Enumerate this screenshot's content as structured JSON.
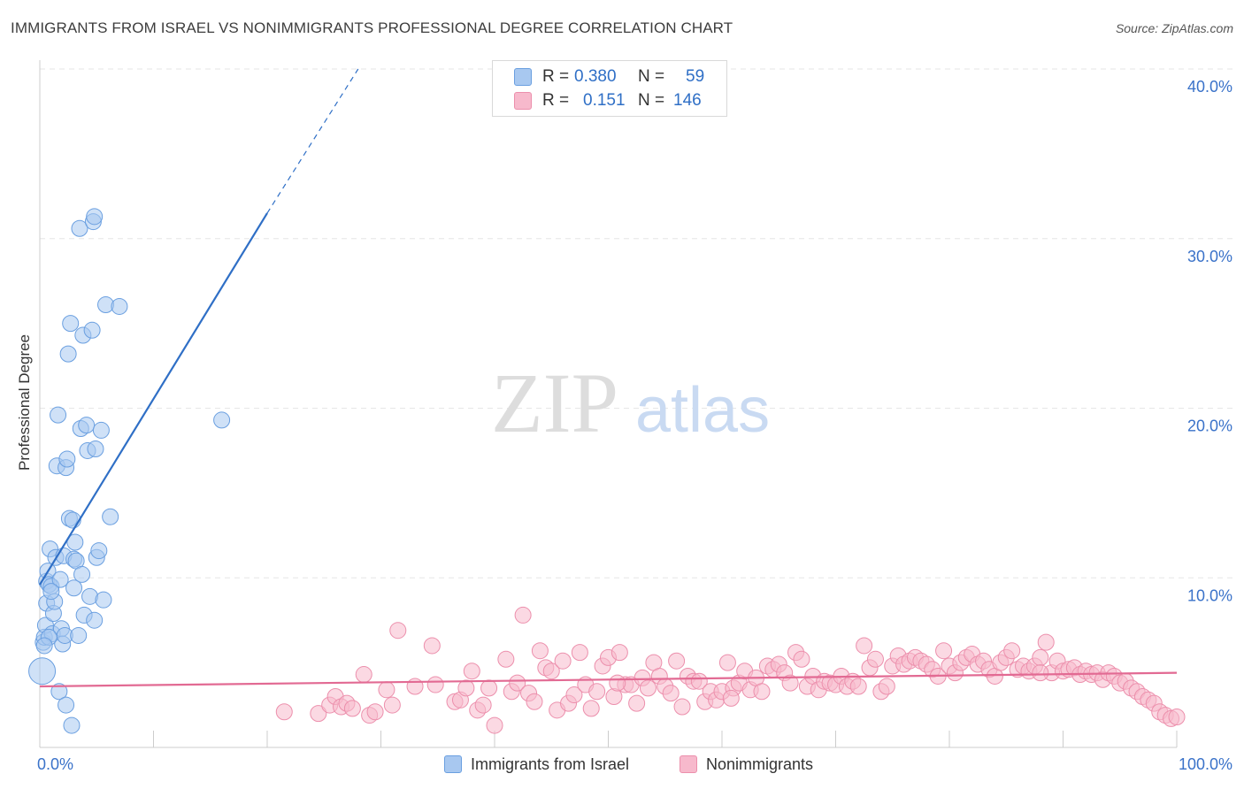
{
  "title": "IMMIGRANTS FROM ISRAEL VS NONIMMIGRANTS PROFESSIONAL DEGREE CORRELATION CHART",
  "source": "Source: ZipAtlas.com",
  "watermark": {
    "zip": "ZIP",
    "atlas": "atlas"
  },
  "legend": {
    "series1": {
      "r_label": "R =",
      "r_value": "0.380",
      "n_label": "N =",
      "n_value": "59"
    },
    "series2": {
      "r_label": "R =",
      "r_value": "0.151",
      "n_label": "N =",
      "n_value": "146"
    }
  },
  "colors": {
    "blue_fill": "#a8c8f0",
    "blue_stroke": "#6a9fe0",
    "blue_line": "#2f6fc6",
    "pink_fill": "#f7b9cc",
    "pink_stroke": "#ec8fac",
    "pink_line": "#e26a93",
    "axis_text": "#3a72c9",
    "grid": "#e6e6e6"
  },
  "chart_data": {
    "type": "scatter",
    "title": "IMMIGRANTS FROM ISRAEL VS NONIMMIGRANTS PROFESSIONAL DEGREE CORRELATION CHART",
    "xlabel": "",
    "ylabel": "Professional Degree",
    "xlim": [
      0,
      100
    ],
    "ylim": [
      0,
      40
    ],
    "x_tick_labels": [
      "0.0%",
      "100.0%"
    ],
    "y_ticks": [
      10,
      20,
      30,
      40
    ],
    "y_tick_labels": [
      "10.0%",
      "20.0%",
      "30.0%",
      "40.0%"
    ],
    "legend_position": "top-center",
    "series": [
      {
        "name": "Immigrants from Israel",
        "color": "#6a9fe0",
        "trendline": {
          "x_start": 0,
          "y_start": 9.6,
          "x_end_solid": 20,
          "y_end_solid": 31.5,
          "x_end_dashed": 28,
          "y_end_dashed": 40
        },
        "points": [
          [
            0.2,
            4.5
          ],
          [
            0.3,
            6.2
          ],
          [
            0.4,
            6.5
          ],
          [
            0.5,
            7.2
          ],
          [
            0.6,
            8.5
          ],
          [
            0.6,
            9.8
          ],
          [
            0.7,
            10.4
          ],
          [
            0.8,
            9.6
          ],
          [
            0.9,
            11.7
          ],
          [
            1.0,
            9.5
          ],
          [
            1.1,
            6.7
          ],
          [
            1.2,
            7.9
          ],
          [
            1.3,
            8.6
          ],
          [
            1.4,
            11.2
          ],
          [
            1.5,
            16.6
          ],
          [
            1.6,
            19.6
          ],
          [
            1.7,
            3.3
          ],
          [
            1.8,
            9.9
          ],
          [
            1.9,
            7.0
          ],
          [
            2.0,
            6.1
          ],
          [
            2.1,
            11.3
          ],
          [
            2.2,
            6.6
          ],
          [
            2.3,
            16.5
          ],
          [
            2.4,
            17.0
          ],
          [
            2.5,
            23.2
          ],
          [
            2.6,
            13.5
          ],
          [
            2.7,
            25.0
          ],
          [
            2.8,
            1.3
          ],
          [
            2.9,
            13.4
          ],
          [
            3.0,
            11.1
          ],
          [
            3.1,
            12.1
          ],
          [
            3.2,
            11.0
          ],
          [
            3.4,
            6.6
          ],
          [
            3.5,
            30.6
          ],
          [
            3.6,
            18.8
          ],
          [
            3.7,
            10.2
          ],
          [
            3.8,
            24.3
          ],
          [
            3.9,
            7.8
          ],
          [
            4.1,
            19.0
          ],
          [
            4.2,
            17.5
          ],
          [
            4.4,
            8.9
          ],
          [
            4.6,
            24.6
          ],
          [
            4.8,
            7.5
          ],
          [
            5.0,
            11.2
          ],
          [
            5.2,
            11.6
          ],
          [
            5.6,
            8.7
          ],
          [
            4.7,
            31.0
          ],
          [
            4.9,
            17.6
          ],
          [
            5.4,
            18.7
          ],
          [
            5.8,
            26.1
          ],
          [
            6.2,
            13.6
          ],
          [
            7.0,
            26.0
          ],
          [
            16.0,
            19.3
          ],
          [
            3.0,
            9.4
          ],
          [
            1.0,
            9.2
          ],
          [
            0.8,
            6.5
          ],
          [
            2.3,
            2.5
          ],
          [
            4.8,
            31.3
          ],
          [
            0.4,
            6.0
          ]
        ],
        "radius": [
          14,
          10,
          10,
          10,
          10,
          10,
          10,
          10,
          10,
          10,
          10,
          10,
          10,
          10,
          10,
          10,
          10,
          10,
          10,
          10,
          10,
          10,
          10,
          10,
          10,
          10,
          10,
          10,
          10,
          10,
          10,
          10,
          10,
          10,
          10,
          10,
          10,
          10,
          10,
          10,
          10,
          10,
          10,
          10,
          10,
          10,
          10,
          10,
          10,
          10,
          10,
          10,
          10,
          10,
          10,
          10,
          10,
          10,
          10
        ]
      },
      {
        "name": "Nonimmigrants",
        "color": "#ec8fac",
        "trendline": {
          "x_start": 0,
          "y_start": 3.6,
          "x_end": 100,
          "y_end": 4.4
        },
        "points": [
          [
            21.5,
            2.1
          ],
          [
            24.5,
            2.0
          ],
          [
            25.5,
            2.5
          ],
          [
            26.0,
            3.0
          ],
          [
            26.5,
            2.4
          ],
          [
            27.0,
            2.6
          ],
          [
            27.5,
            2.3
          ],
          [
            28.5,
            4.3
          ],
          [
            29.0,
            1.9
          ],
          [
            29.5,
            2.1
          ],
          [
            30.5,
            3.4
          ],
          [
            31.0,
            2.5
          ],
          [
            31.5,
            6.9
          ],
          [
            33.0,
            3.6
          ],
          [
            34.5,
            6.0
          ],
          [
            34.8,
            3.7
          ],
          [
            36.5,
            2.7
          ],
          [
            37.0,
            2.8
          ],
          [
            37.5,
            3.5
          ],
          [
            38.0,
            4.5
          ],
          [
            38.5,
            2.2
          ],
          [
            39.0,
            2.5
          ],
          [
            39.5,
            3.5
          ],
          [
            40.0,
            1.3
          ],
          [
            41.0,
            5.2
          ],
          [
            41.5,
            3.3
          ],
          [
            42.0,
            3.8
          ],
          [
            42.5,
            7.8
          ],
          [
            43.0,
            3.2
          ],
          [
            43.5,
            2.7
          ],
          [
            44.0,
            5.7
          ],
          [
            44.5,
            4.7
          ],
          [
            45.0,
            4.5
          ],
          [
            45.5,
            2.2
          ],
          [
            46.0,
            5.1
          ],
          [
            46.5,
            2.6
          ],
          [
            47.0,
            3.1
          ],
          [
            47.5,
            5.6
          ],
          [
            48.0,
            3.7
          ],
          [
            48.5,
            2.3
          ],
          [
            49.0,
            3.3
          ],
          [
            49.5,
            4.8
          ],
          [
            50.0,
            5.3
          ],
          [
            50.5,
            3.0
          ],
          [
            51.0,
            5.6
          ],
          [
            51.5,
            3.7
          ],
          [
            52.0,
            3.7
          ],
          [
            52.5,
            2.6
          ],
          [
            53.0,
            4.1
          ],
          [
            53.5,
            3.5
          ],
          [
            54.0,
            5.0
          ],
          [
            54.5,
            4.2
          ],
          [
            55.0,
            3.6
          ],
          [
            55.5,
            3.2
          ],
          [
            56.0,
            5.1
          ],
          [
            56.5,
            2.4
          ],
          [
            57.0,
            4.2
          ],
          [
            57.5,
            3.9
          ],
          [
            58.0,
            3.9
          ],
          [
            58.5,
            2.7
          ],
          [
            59.0,
            3.3
          ],
          [
            59.5,
            2.8
          ],
          [
            60.0,
            3.3
          ],
          [
            60.5,
            5.0
          ],
          [
            61.0,
            3.5
          ],
          [
            61.5,
            3.8
          ],
          [
            62.0,
            4.5
          ],
          [
            62.5,
            3.4
          ],
          [
            63.0,
            4.1
          ],
          [
            63.5,
            3.3
          ],
          [
            64.0,
            4.8
          ],
          [
            64.5,
            4.6
          ],
          [
            65.0,
            4.9
          ],
          [
            65.5,
            4.4
          ],
          [
            66.0,
            3.8
          ],
          [
            66.5,
            5.6
          ],
          [
            67.0,
            5.2
          ],
          [
            67.5,
            3.6
          ],
          [
            68.0,
            4.2
          ],
          [
            68.5,
            3.4
          ],
          [
            69.0,
            3.9
          ],
          [
            69.5,
            3.8
          ],
          [
            70.0,
            3.7
          ],
          [
            70.5,
            4.2
          ],
          [
            71.0,
            3.6
          ],
          [
            71.5,
            3.9
          ],
          [
            72.0,
            3.6
          ],
          [
            72.5,
            6.0
          ],
          [
            73.0,
            4.7
          ],
          [
            73.5,
            5.2
          ],
          [
            74.0,
            3.3
          ],
          [
            74.5,
            3.6
          ],
          [
            75.0,
            4.8
          ],
          [
            75.5,
            5.4
          ],
          [
            76.0,
            4.9
          ],
          [
            76.5,
            5.1
          ],
          [
            77.0,
            5.3
          ],
          [
            77.5,
            5.1
          ],
          [
            78.0,
            4.9
          ],
          [
            78.5,
            4.6
          ],
          [
            79.0,
            4.2
          ],
          [
            79.5,
            5.7
          ],
          [
            80.0,
            4.8
          ],
          [
            80.5,
            4.4
          ],
          [
            81.0,
            5.0
          ],
          [
            81.5,
            5.3
          ],
          [
            82.0,
            5.5
          ],
          [
            82.5,
            4.9
          ],
          [
            83.0,
            5.1
          ],
          [
            83.5,
            4.6
          ],
          [
            84.0,
            4.2
          ],
          [
            84.5,
            5.0
          ],
          [
            85.0,
            5.3
          ],
          [
            85.5,
            5.7
          ],
          [
            86.0,
            4.6
          ],
          [
            86.5,
            4.8
          ],
          [
            87.0,
            4.5
          ],
          [
            87.5,
            4.8
          ],
          [
            88.0,
            5.3
          ],
          [
            88.5,
            6.2
          ],
          [
            89.0,
            4.4
          ],
          [
            89.5,
            5.1
          ],
          [
            90.0,
            4.5
          ],
          [
            90.5,
            4.6
          ],
          [
            91.0,
            4.7
          ],
          [
            91.5,
            4.3
          ],
          [
            92.0,
            4.5
          ],
          [
            92.5,
            4.3
          ],
          [
            93.0,
            4.4
          ],
          [
            93.5,
            4.0
          ],
          [
            94.0,
            4.4
          ],
          [
            94.5,
            4.2
          ],
          [
            95.0,
            3.8
          ],
          [
            95.5,
            3.9
          ],
          [
            96.0,
            3.5
          ],
          [
            96.5,
            3.3
          ],
          [
            97.0,
            3.0
          ],
          [
            97.5,
            2.8
          ],
          [
            98.0,
            2.6
          ],
          [
            98.5,
            2.1
          ],
          [
            99.0,
            1.9
          ],
          [
            99.5,
            1.7
          ],
          [
            100.0,
            1.8
          ],
          [
            50.8,
            3.8
          ],
          [
            60.8,
            2.9
          ],
          [
            88.0,
            4.4
          ]
        ]
      }
    ]
  },
  "bottom_legend": {
    "item1": "Immigrants from Israel",
    "item2": "Nonimmigrants"
  }
}
